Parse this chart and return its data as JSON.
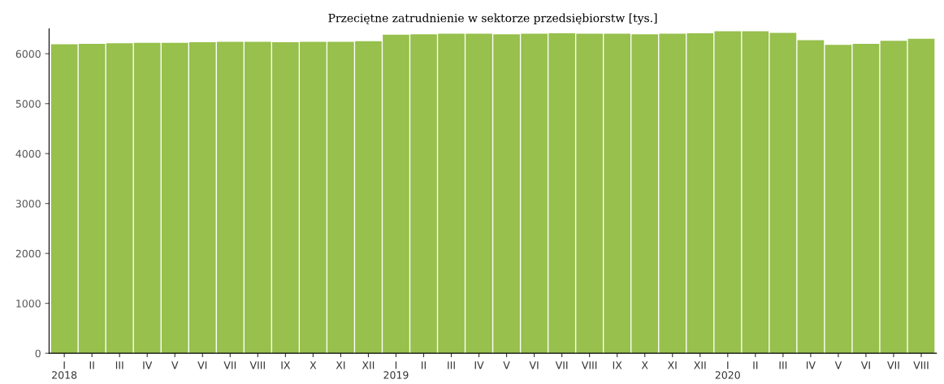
{
  "chart_data": {
    "type": "bar",
    "title": "Przeciętne zatrudnienie w sektorze przedsiębiorstw [tys.]",
    "categories": [
      "I\n2018",
      "II",
      "III",
      "IV",
      "V",
      "VI",
      "VII",
      "VIII",
      "IX",
      "X",
      "XI",
      "XII",
      "I\n2019",
      "II",
      "III",
      "IV",
      "V",
      "VI",
      "VII",
      "VIII",
      "IX",
      "X",
      "XI",
      "XII",
      "I\n2020",
      "II",
      "III",
      "IV",
      "V",
      "VI",
      "VII",
      "VIII"
    ],
    "values": [
      6190,
      6200,
      6210,
      6220,
      6220,
      6230,
      6240,
      6240,
      6230,
      6240,
      6240,
      6250,
      6380,
      6390,
      6400,
      6400,
      6390,
      6400,
      6410,
      6400,
      6400,
      6390,
      6400,
      6410,
      6450,
      6450,
      6420,
      6270,
      6180,
      6200,
      6260,
      6300
    ],
    "color": "#97c04c",
    "ylim": [
      0,
      6500
    ],
    "yticks": [
      0,
      1000,
      2000,
      3000,
      4000,
      5000,
      6000
    ],
    "grid": false,
    "legend": false
  }
}
